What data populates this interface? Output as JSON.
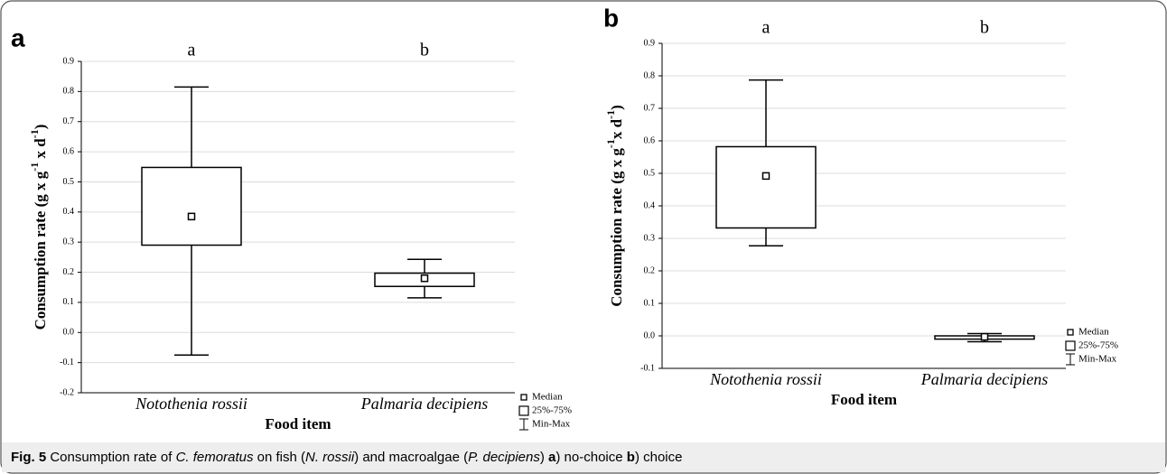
{
  "chart_data": [
    {
      "type": "box",
      "panel": "a",
      "xlabel": "Food item",
      "ylabel": [
        "Consumption rate (g x g",
        "-1",
        " x d",
        "-1",
        ")"
      ],
      "categories": [
        "Notothenia rossii",
        "Palmaria decipiens"
      ],
      "group_labels": [
        "a",
        "b"
      ],
      "boxes": [
        {
          "min": -0.075,
          "q1": 0.29,
          "median": 0.385,
          "q3": 0.548,
          "max": 0.815
        },
        {
          "min": 0.115,
          "q1": 0.153,
          "median": 0.18,
          "q3": 0.197,
          "max": 0.243
        }
      ],
      "ylim": [
        -0.2,
        0.9
      ],
      "yticks": [
        -0.2,
        -0.1,
        {
          "value": 0,
          "label": "0.0"
        },
        0.1,
        0.2,
        0.3,
        0.4,
        0.5,
        0.6,
        0.7,
        0.8,
        0.9
      ],
      "grid": true,
      "legend": [
        "Median",
        "25%-75%",
        "Min-Max"
      ],
      "legend_position": "bottom right"
    },
    {
      "type": "box",
      "panel": "b",
      "xlabel": "Food item",
      "ylabel": [
        "Consumption rate (g x g",
        "-1",
        "x d",
        "-1",
        ")"
      ],
      "categories": [
        "Notothenia rossii",
        "Palmaria decipiens"
      ],
      "group_labels": [
        "a",
        "b"
      ],
      "boxes": [
        {
          "min": 0.277,
          "q1": 0.332,
          "median": 0.492,
          "q3": 0.582,
          "max": 0.787
        },
        {
          "min": -0.018,
          "q1": -0.01,
          "median": -0.003,
          "q3": 0.0,
          "max": 0.007
        }
      ],
      "ylim": [
        -0.1,
        0.9
      ],
      "yticks": [
        -0.1,
        {
          "value": 0,
          "label": "0.0"
        },
        0.1,
        0.2,
        0.3,
        0.4,
        0.5,
        0.6,
        0.7,
        0.8,
        0.9
      ],
      "grid": true,
      "legend": [
        "Median",
        "25%-75%",
        "Min-Max"
      ],
      "legend_position": "right"
    }
  ],
  "caption": {
    "label": "Fig. 5",
    "parts": [
      " Consumption rate of ",
      "C. femoratus",
      " on fish (",
      "N. rossii",
      ") and macroalgae (",
      "P. decipiens",
      ") ",
      "a",
      ") no-choice ",
      "b",
      ") choice"
    ]
  }
}
